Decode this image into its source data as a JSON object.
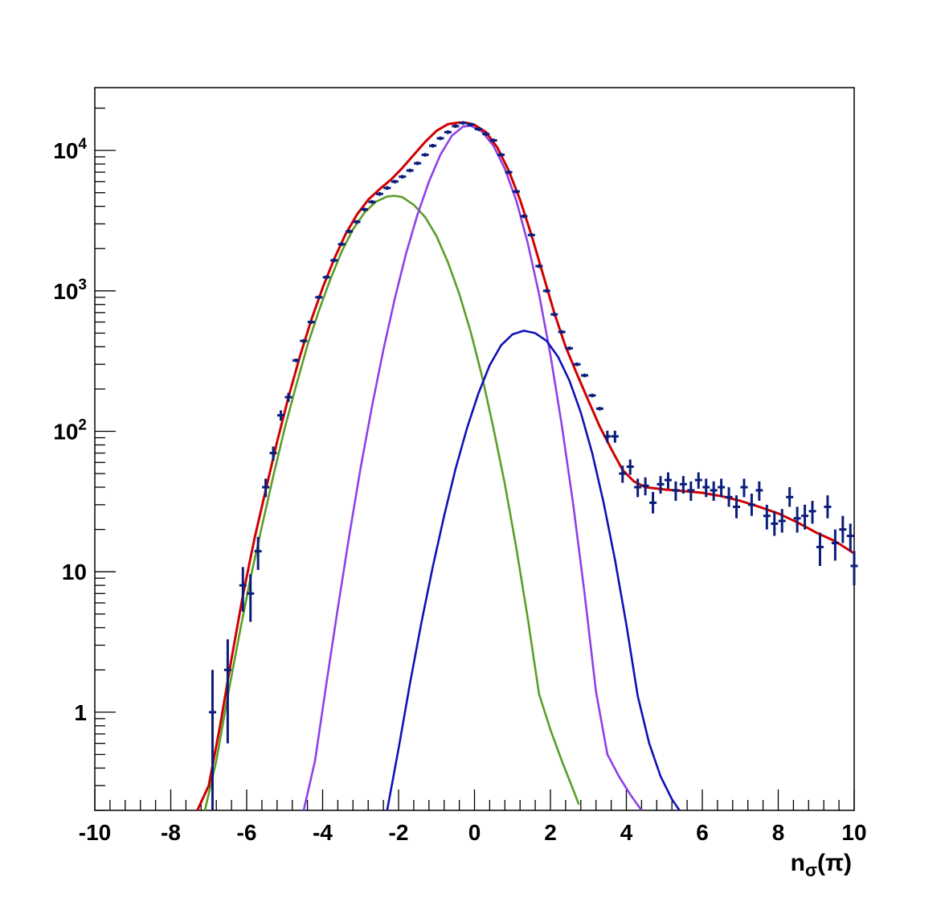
{
  "chart_data": {
    "type": "line",
    "title": "",
    "xlabel": {
      "base": "n",
      "sub": "σ",
      "rest": "(π)"
    },
    "ylabel": "",
    "xlim": [
      -10,
      10
    ],
    "ylim": [
      0.2,
      28000
    ],
    "yscale": "log",
    "grid": false,
    "legend": "none",
    "x_ticks": [
      -10,
      -8,
      -6,
      -4,
      -2,
      0,
      2,
      4,
      6,
      8,
      10
    ],
    "x_tick_labels": [
      "-10",
      "-8",
      "-6",
      "-4",
      "-2",
      "0",
      "2",
      "4",
      "6",
      "8",
      "10"
    ],
    "y_ticks": [
      {
        "value": 1,
        "base": "1",
        "exp": ""
      },
      {
        "value": 10,
        "base": "10",
        "exp": ""
      },
      {
        "value": 100,
        "base": "10",
        "exp": "2"
      },
      {
        "value": 1000,
        "base": "10",
        "exp": "3"
      },
      {
        "value": 10000,
        "base": "10",
        "exp": "4"
      }
    ],
    "colors": {
      "data": "#0b1d7a",
      "total": "#d00000",
      "green": "#5a9e28",
      "purple": "#9040e8",
      "blue": "#1010b8"
    },
    "data_points": [
      {
        "x": -6.9,
        "y": 1.0,
        "lo": 0.2,
        "hi": 2.0
      },
      {
        "x": -6.5,
        "y": 2.0,
        "lo": 0.6,
        "hi": 3.3
      },
      {
        "x": -6.1,
        "y": 8.0,
        "lo": 5.2,
        "hi": 10.8
      },
      {
        "x": -5.9,
        "y": 7.0,
        "lo": 4.4,
        "hi": 9.6
      },
      {
        "x": -5.7,
        "y": 14.0,
        "lo": 10.3,
        "hi": 17.7
      },
      {
        "x": -5.5,
        "y": 40,
        "lo": 34,
        "hi": 46
      },
      {
        "x": -5.3,
        "y": 70,
        "lo": 62,
        "hi": 78
      },
      {
        "x": -5.1,
        "y": 130,
        "lo": 119,
        "hi": 141
      },
      {
        "x": -4.9,
        "y": 175,
        "lo": 162,
        "hi": 188
      },
      {
        "x": -4.7,
        "y": 320
      },
      {
        "x": -4.5,
        "y": 440
      },
      {
        "x": -4.3,
        "y": 600
      },
      {
        "x": -4.1,
        "y": 900
      },
      {
        "x": -3.9,
        "y": 1250
      },
      {
        "x": -3.7,
        "y": 1650
      },
      {
        "x": -3.5,
        "y": 2150
      },
      {
        "x": -3.3,
        "y": 2650
      },
      {
        "x": -3.1,
        "y": 3100
      },
      {
        "x": -2.9,
        "y": 3800
      },
      {
        "x": -2.7,
        "y": 4300
      },
      {
        "x": -2.5,
        "y": 4900
      },
      {
        "x": -2.3,
        "y": 5400
      },
      {
        "x": -2.1,
        "y": 6000
      },
      {
        "x": -1.9,
        "y": 6500
      },
      {
        "x": -1.7,
        "y": 7200
      },
      {
        "x": -1.5,
        "y": 8100
      },
      {
        "x": -1.3,
        "y": 9300
      },
      {
        "x": -1.1,
        "y": 10800
      },
      {
        "x": -0.9,
        "y": 12200
      },
      {
        "x": -0.7,
        "y": 13500
      },
      {
        "x": -0.5,
        "y": 14900
      },
      {
        "x": -0.3,
        "y": 15700
      },
      {
        "x": -0.1,
        "y": 15300
      },
      {
        "x": 0.1,
        "y": 14200
      },
      {
        "x": 0.3,
        "y": 13100
      },
      {
        "x": 0.5,
        "y": 11800
      },
      {
        "x": 0.7,
        "y": 9300
      },
      {
        "x": 0.9,
        "y": 7000
      },
      {
        "x": 1.1,
        "y": 5100
      },
      {
        "x": 1.3,
        "y": 3400
      },
      {
        "x": 1.5,
        "y": 2500
      },
      {
        "x": 1.7,
        "y": 1500
      },
      {
        "x": 1.9,
        "y": 1000
      },
      {
        "x": 2.1,
        "y": 680
      },
      {
        "x": 2.3,
        "y": 510
      },
      {
        "x": 2.5,
        "y": 390
      },
      {
        "x": 2.7,
        "y": 300
      },
      {
        "x": 2.9,
        "y": 250
      },
      {
        "x": 3.1,
        "y": 180
      },
      {
        "x": 3.3,
        "y": 145
      },
      {
        "x": 3.5,
        "y": 92,
        "lo": 83,
        "hi": 101
      },
      {
        "x": 3.7,
        "y": 92,
        "lo": 83,
        "hi": 101
      },
      {
        "x": 3.9,
        "y": 50,
        "lo": 43,
        "hi": 57
      },
      {
        "x": 4.1,
        "y": 56,
        "lo": 49,
        "hi": 63
      },
      {
        "x": 4.3,
        "y": 40,
        "lo": 34,
        "hi": 46
      },
      {
        "x": 4.5,
        "y": 41,
        "lo": 35,
        "hi": 47
      },
      {
        "x": 4.7,
        "y": 31,
        "lo": 26,
        "hi": 37
      },
      {
        "x": 4.9,
        "y": 42,
        "lo": 36,
        "hi": 48
      },
      {
        "x": 5.1,
        "y": 45,
        "lo": 39,
        "hi": 51
      },
      {
        "x": 5.3,
        "y": 38,
        "lo": 32,
        "hi": 44
      },
      {
        "x": 5.5,
        "y": 42,
        "lo": 36,
        "hi": 48
      },
      {
        "x": 5.7,
        "y": 38,
        "lo": 32,
        "hi": 44
      },
      {
        "x": 5.9,
        "y": 45,
        "lo": 39,
        "hi": 51
      },
      {
        "x": 6.1,
        "y": 40,
        "lo": 34,
        "hi": 46
      },
      {
        "x": 6.3,
        "y": 38,
        "lo": 32,
        "hi": 44
      },
      {
        "x": 6.5,
        "y": 40,
        "lo": 34,
        "hi": 46
      },
      {
        "x": 6.7,
        "y": 34,
        "lo": 29,
        "hi": 40
      },
      {
        "x": 6.9,
        "y": 29,
        "lo": 24,
        "hi": 35
      },
      {
        "x": 7.1,
        "y": 40,
        "lo": 34,
        "hi": 46
      },
      {
        "x": 7.3,
        "y": 30,
        "lo": 25,
        "hi": 36
      },
      {
        "x": 7.5,
        "y": 38,
        "lo": 32,
        "hi": 44
      },
      {
        "x": 7.7,
        "y": 25,
        "lo": 20,
        "hi": 30
      },
      {
        "x": 7.9,
        "y": 22,
        "lo": 18,
        "hi": 27
      },
      {
        "x": 8.1,
        "y": 23,
        "lo": 19,
        "hi": 28
      },
      {
        "x": 8.3,
        "y": 34,
        "lo": 29,
        "hi": 40
      },
      {
        "x": 8.5,
        "y": 24,
        "lo": 19,
        "hi": 29
      },
      {
        "x": 8.7,
        "y": 25,
        "lo": 20,
        "hi": 30
      },
      {
        "x": 8.9,
        "y": 27,
        "lo": 22,
        "hi": 32
      },
      {
        "x": 9.1,
        "y": 15,
        "lo": 11,
        "hi": 19
      },
      {
        "x": 9.3,
        "y": 29,
        "lo": 24,
        "hi": 35
      },
      {
        "x": 9.5,
        "y": 16,
        "lo": 12,
        "hi": 20
      },
      {
        "x": 9.7,
        "y": 20,
        "lo": 16,
        "hi": 25
      },
      {
        "x": 9.9,
        "y": 18,
        "lo": 14,
        "hi": 22
      },
      {
        "x": 10.0,
        "y": 11,
        "lo": 8,
        "hi": 14
      }
    ],
    "curves": [
      {
        "color": "green",
        "x": [
          -7.1,
          -6.8,
          -6.5,
          -6.2,
          -5.9,
          -5.6,
          -5.3,
          -5.0,
          -4.7,
          -4.4,
          -4.1,
          -3.8,
          -3.5,
          -3.2,
          -2.9,
          -2.6,
          -2.3,
          -2.1,
          -1.9,
          -1.6,
          -1.3,
          -1.0,
          -0.7,
          -0.4,
          -0.1,
          0.2,
          0.5,
          0.8,
          1.1,
          1.4,
          1.7,
          2.0,
          2.3,
          2.6,
          2.75
        ],
        "y": [
          0.2,
          0.45,
          1.3,
          3.5,
          9,
          21,
          48,
          105,
          210,
          410,
          720,
          1200,
          1900,
          2750,
          3600,
          4300,
          4700,
          4750,
          4650,
          4100,
          3350,
          2450,
          1600,
          950,
          510,
          245,
          105,
          42,
          14.8,
          4.7,
          1.35,
          0.75,
          0.45,
          0.28,
          0.22
        ]
      },
      {
        "color": "purple",
        "x": [
          -4.5,
          -4.2,
          -3.9,
          -3.6,
          -3.3,
          -3.0,
          -2.7,
          -2.4,
          -2.1,
          -1.8,
          -1.5,
          -1.2,
          -0.9,
          -0.6,
          -0.3,
          -0.1,
          0.2,
          0.5,
          0.8,
          1.1,
          1.4,
          1.7,
          2.0,
          2.3,
          2.6,
          2.9,
          3.2,
          3.5,
          3.8,
          4.1,
          4.4
        ],
        "y": [
          0.2,
          0.45,
          1.6,
          5.5,
          18,
          55,
          150,
          380,
          880,
          1850,
          3500,
          6000,
          9300,
          12700,
          14800,
          15000,
          13600,
          10800,
          7400,
          4400,
          2200,
          950,
          350,
          110,
          30,
          7.0,
          1.4,
          0.5,
          0.35,
          0.26,
          0.2
        ]
      },
      {
        "color": "blue",
        "x": [
          -2.3,
          -2.0,
          -1.7,
          -1.4,
          -1.1,
          -0.8,
          -0.5,
          -0.2,
          0.1,
          0.4,
          0.7,
          1.0,
          1.3,
          1.6,
          1.9,
          2.2,
          2.5,
          2.8,
          3.1,
          3.4,
          3.7,
          4.0,
          4.3,
          4.6,
          4.9,
          5.2,
          5.4
        ],
        "y": [
          0.2,
          0.55,
          1.6,
          4.3,
          10.8,
          25,
          54,
          105,
          185,
          295,
          410,
          490,
          520,
          500,
          440,
          340,
          230,
          136,
          70,
          31,
          12.2,
          4.2,
          1.3,
          0.6,
          0.35,
          0.24,
          0.2
        ]
      },
      {
        "color": "total",
        "x": [
          -7.3,
          -7.0,
          -6.7,
          -6.4,
          -6.1,
          -5.8,
          -5.5,
          -5.2,
          -4.9,
          -4.6,
          -4.3,
          -4.0,
          -3.7,
          -3.4,
          -3.1,
          -2.8,
          -2.5,
          -2.2,
          -1.9,
          -1.6,
          -1.3,
          -1.0,
          -0.7,
          -0.4,
          -0.2,
          0.0,
          0.3,
          0.6,
          0.9,
          1.2,
          1.5,
          1.8,
          2.1,
          2.4,
          2.7,
          3.0,
          3.3,
          3.6,
          3.9,
          4.2,
          4.5,
          5.0,
          5.5,
          6.0,
          6.5,
          7.0,
          7.5,
          8.0,
          8.5,
          9.0,
          9.5,
          10.0
        ],
        "y": [
          0.2,
          0.3,
          0.8,
          2.4,
          6.8,
          17,
          38,
          84,
          175,
          340,
          620,
          1050,
          1680,
          2520,
          3480,
          4450,
          5300,
          6200,
          7500,
          9300,
          11500,
          13800,
          15400,
          15800,
          15700,
          15200,
          13500,
          10500,
          7200,
          4450,
          2500,
          1320,
          700,
          400,
          255,
          165,
          108,
          75,
          53,
          44,
          40,
          38.5,
          37.5,
          36.5,
          34.5,
          32,
          29,
          26,
          22.5,
          19,
          16.5,
          13.5
        ]
      }
    ]
  }
}
